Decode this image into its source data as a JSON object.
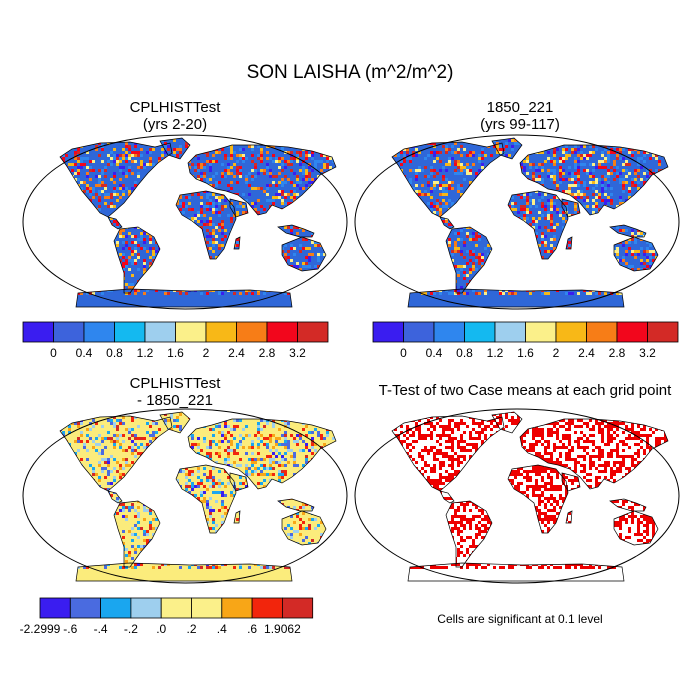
{
  "title": "SON LAISHA (m^2/m^2)",
  "panels": [
    {
      "title_line1": "CPLHISTTest",
      "title_line2": "(yrs 2-20)"
    },
    {
      "title_line1": "1850_221",
      "title_line2": "(yrs 99-117)"
    },
    {
      "title_line1": "CPLHISTTest",
      "title_line2": "- 1850_221"
    },
    {
      "title_line1": "T-Test of two Case means at each grid point",
      "title_line2": ""
    }
  ],
  "colorbar_abs": {
    "colors": [
      "#3a1df0",
      "#3d63dc",
      "#2f86ee",
      "#14b9f0",
      "#9ecfee",
      "#fbf08a",
      "#f8b817",
      "#f77d17",
      "#f2061c",
      "#d32a26"
    ],
    "labels": [
      "0",
      "0.4",
      "0.8",
      "1.2",
      "1.6",
      "2",
      "2.4",
      "2.8",
      "3.2"
    ]
  },
  "colorbar_diff": {
    "colors": [
      "#3a1df0",
      "#4a6be0",
      "#1aa6ef",
      "#9ecfee",
      "#fbf08a",
      "#fbf08a",
      "#f8a617",
      "#f2250c",
      "#d32a26"
    ],
    "labels": [
      "-2.2999",
      "-.6",
      "-.4",
      "-.2",
      ".0",
      ".2",
      ".4",
      ".6",
      "1.9062"
    ]
  },
  "colors": {
    "land_abs_base": "#2f67d8",
    "land_diff_base": "#fbec7c",
    "significant": "#ee0000",
    "outline": "#000000"
  },
  "footnote": "Cells are significant at 0.1 level"
}
